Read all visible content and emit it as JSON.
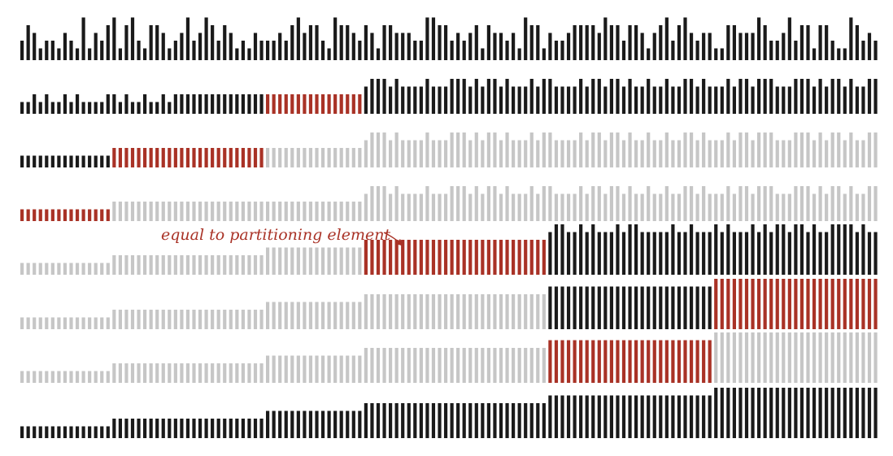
{
  "diagram": {
    "description_type": "quicksort 3-way partitioning trace",
    "colors": {
      "black": "#1a1a1a",
      "red": "#a93226",
      "gray": "#c6c6c6"
    },
    "annotation": {
      "label": "equal to partitioning element",
      "row": 4
    },
    "rows": [
      {
        "heights": [
          2,
          4,
          3,
          1,
          2,
          2,
          1,
          3,
          2,
          1,
          5,
          1,
          3,
          2,
          4,
          5,
          1,
          4,
          5,
          2,
          1,
          4,
          4,
          3,
          1,
          2,
          3,
          5,
          2,
          3,
          5,
          4,
          2,
          4,
          3,
          1,
          2,
          1,
          3,
          2,
          2,
          2,
          3,
          2,
          4,
          5,
          3,
          4,
          4,
          2,
          1,
          5,
          4,
          4,
          3,
          2,
          4,
          3,
          1,
          4,
          4,
          3,
          3,
          3,
          2,
          2,
          5,
          5,
          4,
          4,
          2,
          3,
          2,
          3,
          4,
          1,
          4,
          3,
          3,
          2,
          3,
          1,
          5,
          4,
          4,
          1,
          3,
          2,
          2,
          3,
          4,
          4,
          4,
          4,
          3,
          5,
          4,
          4,
          2,
          4,
          4,
          3,
          1,
          3,
          4,
          5,
          2,
          4,
          5,
          3,
          2,
          3,
          3,
          1,
          1,
          4,
          4,
          3,
          3,
          3,
          5,
          4,
          2,
          2,
          3,
          5,
          2,
          4,
          4,
          1,
          4,
          4,
          2,
          1,
          1,
          5,
          4,
          2,
          3,
          2
        ],
        "segments": [
          {
            "from": 0,
            "to": 139,
            "color": "black"
          }
        ]
      },
      {
        "heights": [
          1,
          1,
          2,
          1,
          2,
          1,
          1,
          2,
          1,
          2,
          1,
          1,
          1,
          1,
          2,
          2,
          1,
          2,
          1,
          1,
          2,
          1,
          1,
          2,
          1,
          2,
          2,
          2,
          2,
          2,
          2,
          2,
          2,
          2,
          2,
          2,
          2,
          2,
          2,
          2,
          2,
          2,
          2,
          2,
          2,
          2,
          2,
          2,
          2,
          2,
          2,
          2,
          2,
          2,
          2,
          2,
          3,
          4,
          4,
          4,
          3,
          4,
          3,
          3,
          3,
          3,
          4,
          3,
          3,
          3,
          4,
          4,
          4,
          3,
          4,
          3,
          4,
          4,
          3,
          4,
          3,
          3,
          3,
          4,
          3,
          4,
          4,
          3,
          3,
          3,
          3,
          4,
          3,
          4,
          4,
          3,
          4,
          4,
          3,
          4,
          3,
          3,
          4,
          3,
          3,
          4,
          3,
          3,
          4,
          4,
          3,
          4,
          3,
          3,
          3,
          4,
          3,
          4,
          4,
          3,
          4,
          4,
          4,
          3,
          3,
          3,
          4,
          4,
          4,
          3,
          4,
          3,
          4,
          4,
          3,
          4,
          3,
          3,
          4,
          4
        ],
        "segments": [
          {
            "from": 0,
            "to": 39,
            "color": "black"
          },
          {
            "from": 40,
            "to": 55,
            "color": "red"
          },
          {
            "from": 56,
            "to": 139,
            "color": "black"
          }
        ]
      },
      {
        "heights": [
          1,
          1,
          1,
          1,
          1,
          1,
          1,
          1,
          1,
          1,
          1,
          1,
          1,
          1,
          1,
          2,
          2,
          2,
          2,
          2,
          2,
          2,
          2,
          2,
          2,
          2,
          2,
          2,
          2,
          2,
          2,
          2,
          2,
          2,
          2,
          2,
          2,
          2,
          2,
          2,
          2,
          2,
          2,
          2,
          2,
          2,
          2,
          2,
          2,
          2,
          2,
          2,
          2,
          2,
          2,
          2,
          3,
          4,
          4,
          4,
          3,
          4,
          3,
          3,
          3,
          3,
          4,
          3,
          3,
          3,
          4,
          4,
          4,
          3,
          4,
          3,
          4,
          4,
          3,
          4,
          3,
          3,
          3,
          4,
          3,
          4,
          4,
          3,
          3,
          3,
          3,
          4,
          3,
          4,
          4,
          3,
          4,
          4,
          3,
          4,
          3,
          3,
          4,
          3,
          3,
          4,
          3,
          3,
          4,
          4,
          3,
          4,
          3,
          3,
          3,
          4,
          3,
          4,
          4,
          3,
          4,
          4,
          4,
          3,
          3,
          3,
          4,
          4,
          4,
          3,
          4,
          3,
          4,
          4,
          3,
          4,
          3,
          3,
          4,
          4
        ],
        "segments": [
          {
            "from": 0,
            "to": 14,
            "color": "black"
          },
          {
            "from": 15,
            "to": 39,
            "color": "red"
          },
          {
            "from": 40,
            "to": 139,
            "color": "gray"
          }
        ]
      },
      {
        "heights": [
          1,
          1,
          1,
          1,
          1,
          1,
          1,
          1,
          1,
          1,
          1,
          1,
          1,
          1,
          1,
          2,
          2,
          2,
          2,
          2,
          2,
          2,
          2,
          2,
          2,
          2,
          2,
          2,
          2,
          2,
          2,
          2,
          2,
          2,
          2,
          2,
          2,
          2,
          2,
          2,
          2,
          2,
          2,
          2,
          2,
          2,
          2,
          2,
          2,
          2,
          2,
          2,
          2,
          2,
          2,
          2,
          3,
          4,
          4,
          4,
          3,
          4,
          3,
          3,
          3,
          3,
          4,
          3,
          3,
          3,
          4,
          4,
          4,
          3,
          4,
          3,
          4,
          4,
          3,
          4,
          3,
          3,
          3,
          4,
          3,
          4,
          4,
          3,
          3,
          3,
          3,
          4,
          3,
          4,
          4,
          3,
          4,
          4,
          3,
          4,
          3,
          3,
          4,
          3,
          3,
          4,
          3,
          3,
          4,
          4,
          3,
          4,
          3,
          3,
          3,
          4,
          3,
          4,
          4,
          3,
          4,
          4,
          4,
          3,
          3,
          3,
          4,
          4,
          4,
          3,
          4,
          3,
          4,
          4,
          3,
          4,
          3,
          3,
          4,
          4
        ],
        "segments": [
          {
            "from": 0,
            "to": 14,
            "color": "red"
          },
          {
            "from": 15,
            "to": 139,
            "color": "gray"
          }
        ]
      },
      {
        "heights": [
          1,
          1,
          1,
          1,
          1,
          1,
          1,
          1,
          1,
          1,
          1,
          1,
          1,
          1,
          1,
          2,
          2,
          2,
          2,
          2,
          2,
          2,
          2,
          2,
          2,
          2,
          2,
          2,
          2,
          2,
          2,
          2,
          2,
          2,
          2,
          2,
          2,
          2,
          2,
          2,
          3,
          3,
          3,
          3,
          3,
          3,
          3,
          3,
          3,
          3,
          3,
          3,
          3,
          3,
          3,
          3,
          4,
          4,
          4,
          4,
          4,
          4,
          4,
          4,
          4,
          4,
          4,
          4,
          4,
          4,
          4,
          4,
          4,
          4,
          4,
          4,
          4,
          4,
          4,
          4,
          4,
          4,
          4,
          4,
          4,
          4,
          5,
          6,
          6,
          5,
          5,
          6,
          5,
          6,
          5,
          5,
          5,
          6,
          5,
          6,
          6,
          5,
          5,
          5,
          5,
          5,
          6,
          5,
          5,
          6,
          5,
          5,
          5,
          6,
          5,
          6,
          5,
          5,
          5,
          6,
          5,
          6,
          5,
          6,
          6,
          5,
          6,
          6,
          5,
          6,
          5,
          5,
          6,
          6,
          6,
          6,
          5,
          6,
          5,
          5
        ],
        "segments": [
          {
            "from": 0,
            "to": 55,
            "color": "gray"
          },
          {
            "from": 56,
            "to": 85,
            "color": "red"
          },
          {
            "from": 86,
            "to": 139,
            "color": "black"
          }
        ]
      },
      {
        "heights": [
          1,
          1,
          1,
          1,
          1,
          1,
          1,
          1,
          1,
          1,
          1,
          1,
          1,
          1,
          1,
          2,
          2,
          2,
          2,
          2,
          2,
          2,
          2,
          2,
          2,
          2,
          2,
          2,
          2,
          2,
          2,
          2,
          2,
          2,
          2,
          2,
          2,
          2,
          2,
          2,
          3,
          3,
          3,
          3,
          3,
          3,
          3,
          3,
          3,
          3,
          3,
          3,
          3,
          3,
          3,
          3,
          4,
          4,
          4,
          4,
          4,
          4,
          4,
          4,
          4,
          4,
          4,
          4,
          4,
          4,
          4,
          4,
          4,
          4,
          4,
          4,
          4,
          4,
          4,
          4,
          4,
          4,
          4,
          4,
          4,
          4,
          5,
          5,
          5,
          5,
          5,
          5,
          5,
          5,
          5,
          5,
          5,
          5,
          5,
          5,
          5,
          5,
          5,
          5,
          5,
          5,
          5,
          5,
          5,
          5,
          5,
          5,
          5,
          6,
          6,
          6,
          6,
          6,
          6,
          6,
          6,
          6,
          6,
          6,
          6,
          6,
          6,
          6,
          6,
          6,
          6,
          6,
          6,
          6,
          6,
          6,
          6,
          6,
          6,
          6
        ],
        "segments": [
          {
            "from": 0,
            "to": 85,
            "color": "gray"
          },
          {
            "from": 86,
            "to": 112,
            "color": "black"
          },
          {
            "from": 113,
            "to": 139,
            "color": "red"
          }
        ]
      },
      {
        "heights": [
          1,
          1,
          1,
          1,
          1,
          1,
          1,
          1,
          1,
          1,
          1,
          1,
          1,
          1,
          1,
          2,
          2,
          2,
          2,
          2,
          2,
          2,
          2,
          2,
          2,
          2,
          2,
          2,
          2,
          2,
          2,
          2,
          2,
          2,
          2,
          2,
          2,
          2,
          2,
          2,
          3,
          3,
          3,
          3,
          3,
          3,
          3,
          3,
          3,
          3,
          3,
          3,
          3,
          3,
          3,
          3,
          4,
          4,
          4,
          4,
          4,
          4,
          4,
          4,
          4,
          4,
          4,
          4,
          4,
          4,
          4,
          4,
          4,
          4,
          4,
          4,
          4,
          4,
          4,
          4,
          4,
          4,
          4,
          4,
          4,
          4,
          5,
          5,
          5,
          5,
          5,
          5,
          5,
          5,
          5,
          5,
          5,
          5,
          5,
          5,
          5,
          5,
          5,
          5,
          5,
          5,
          5,
          5,
          5,
          5,
          5,
          5,
          5,
          6,
          6,
          6,
          6,
          6,
          6,
          6,
          6,
          6,
          6,
          6,
          6,
          6,
          6,
          6,
          6,
          6,
          6,
          6,
          6,
          6,
          6,
          6,
          6,
          6,
          6,
          6
        ],
        "segments": [
          {
            "from": 0,
            "to": 85,
            "color": "gray"
          },
          {
            "from": 86,
            "to": 112,
            "color": "red"
          },
          {
            "from": 113,
            "to": 139,
            "color": "gray"
          }
        ]
      },
      {
        "heights": [
          1,
          1,
          1,
          1,
          1,
          1,
          1,
          1,
          1,
          1,
          1,
          1,
          1,
          1,
          1,
          2,
          2,
          2,
          2,
          2,
          2,
          2,
          2,
          2,
          2,
          2,
          2,
          2,
          2,
          2,
          2,
          2,
          2,
          2,
          2,
          2,
          2,
          2,
          2,
          2,
          3,
          3,
          3,
          3,
          3,
          3,
          3,
          3,
          3,
          3,
          3,
          3,
          3,
          3,
          3,
          3,
          4,
          4,
          4,
          4,
          4,
          4,
          4,
          4,
          4,
          4,
          4,
          4,
          4,
          4,
          4,
          4,
          4,
          4,
          4,
          4,
          4,
          4,
          4,
          4,
          4,
          4,
          4,
          4,
          4,
          4,
          5,
          5,
          5,
          5,
          5,
          5,
          5,
          5,
          5,
          5,
          5,
          5,
          5,
          5,
          5,
          5,
          5,
          5,
          5,
          5,
          5,
          5,
          5,
          5,
          5,
          5,
          5,
          6,
          6,
          6,
          6,
          6,
          6,
          6,
          6,
          6,
          6,
          6,
          6,
          6,
          6,
          6,
          6,
          6,
          6,
          6,
          6,
          6,
          6,
          6,
          6,
          6,
          6,
          6
        ],
        "segments": [
          {
            "from": 0,
            "to": 139,
            "color": "black"
          }
        ]
      }
    ]
  }
}
